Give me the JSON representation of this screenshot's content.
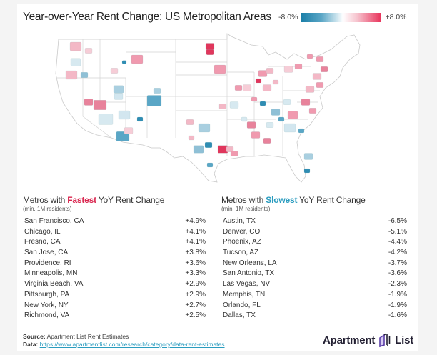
{
  "title": "Year-over-Year Rent Change: US Metropolitan Areas",
  "legend": {
    "min_label": "-8.0%",
    "max_label": "+8.0%",
    "colors": {
      "low": "#1b7fa8",
      "mid": "#ffffff",
      "high": "#e8325a"
    }
  },
  "fastest": {
    "heading_prefix": "Metros with ",
    "heading_emphasis": "Fastest",
    "heading_suffix": " YoY Rent Change",
    "note": "(min. 1M residents)",
    "accent": "#d9254e",
    "rows": [
      {
        "metro": "San Francisco, CA",
        "change": "+4.9%"
      },
      {
        "metro": "Chicago, IL",
        "change": "+4.1%"
      },
      {
        "metro": "Fresno, CA",
        "change": "+4.1%"
      },
      {
        "metro": "San Jose, CA",
        "change": "+3.8%"
      },
      {
        "metro": "Providence, RI",
        "change": "+3.6%"
      },
      {
        "metro": "Minneapolis, MN",
        "change": "+3.3%"
      },
      {
        "metro": "Virginia Beach, VA",
        "change": "+2.9%"
      },
      {
        "metro": "Pittsburgh, PA",
        "change": "+2.9%"
      },
      {
        "metro": "New York, NY",
        "change": "+2.7%"
      },
      {
        "metro": "Richmond, VA",
        "change": "+2.5%"
      }
    ]
  },
  "slowest": {
    "heading_prefix": "Metros with ",
    "heading_emphasis": "Slowest",
    "heading_suffix": " YoY Rent Change",
    "note": "(min. 1M residents)",
    "accent": "#2a9cbf",
    "rows": [
      {
        "metro": "Austin, TX",
        "change": "-6.5%"
      },
      {
        "metro": "Denver, CO",
        "change": "-5.1%"
      },
      {
        "metro": "Phoenix, AZ",
        "change": "-4.4%"
      },
      {
        "metro": "Tucson, AZ",
        "change": "-4.2%"
      },
      {
        "metro": "New Orleans, LA",
        "change": "-3.7%"
      },
      {
        "metro": "San Antonio, TX",
        "change": "-3.6%"
      },
      {
        "metro": "Las Vegas, NV",
        "change": "-2.3%"
      },
      {
        "metro": "Memphis, TN",
        "change": "-1.9%"
      },
      {
        "metro": "Orlando, FL",
        "change": "-1.9%"
      },
      {
        "metro": "Dallas, TX",
        "change": "-1.6%"
      }
    ]
  },
  "footer": {
    "source_label": "Source:",
    "source_text": "Apartment List Rent Estimates",
    "data_label": "Data:",
    "data_link": "https://www.apartmentlist.com/research/category/data-rent-estimates"
  },
  "logo": {
    "left_word": "Apartment",
    "right_word": "List",
    "icon": "building-icon",
    "brand_color": "#5b3fa8"
  },
  "chart_data": {
    "type": "table",
    "title": "Year-over-Year Rent Change: US Metropolitan Areas",
    "color_scale": {
      "min": -8.0,
      "max": 8.0,
      "unit": "%"
    },
    "series": [
      {
        "name": "Metros with Fastest YoY Rent Change",
        "categories": [
          "San Francisco, CA",
          "Chicago, IL",
          "Fresno, CA",
          "San Jose, CA",
          "Providence, RI",
          "Minneapolis, MN",
          "Virginia Beach, VA",
          "Pittsburgh, PA",
          "New York, NY",
          "Richmond, VA"
        ],
        "values": [
          4.9,
          4.1,
          4.1,
          3.8,
          3.6,
          3.3,
          2.9,
          2.9,
          2.7,
          2.5
        ]
      },
      {
        "name": "Metros with Slowest YoY Rent Change",
        "categories": [
          "Austin, TX",
          "Denver, CO",
          "Phoenix, AZ",
          "Tucson, AZ",
          "New Orleans, LA",
          "San Antonio, TX",
          "Las Vegas, NV",
          "Memphis, TN",
          "Orlando, FL",
          "Dallas, TX"
        ],
        "values": [
          -6.5,
          -5.1,
          -4.4,
          -4.2,
          -3.7,
          -3.6,
          -2.3,
          -1.9,
          -1.9,
          -1.6
        ]
      }
    ]
  }
}
